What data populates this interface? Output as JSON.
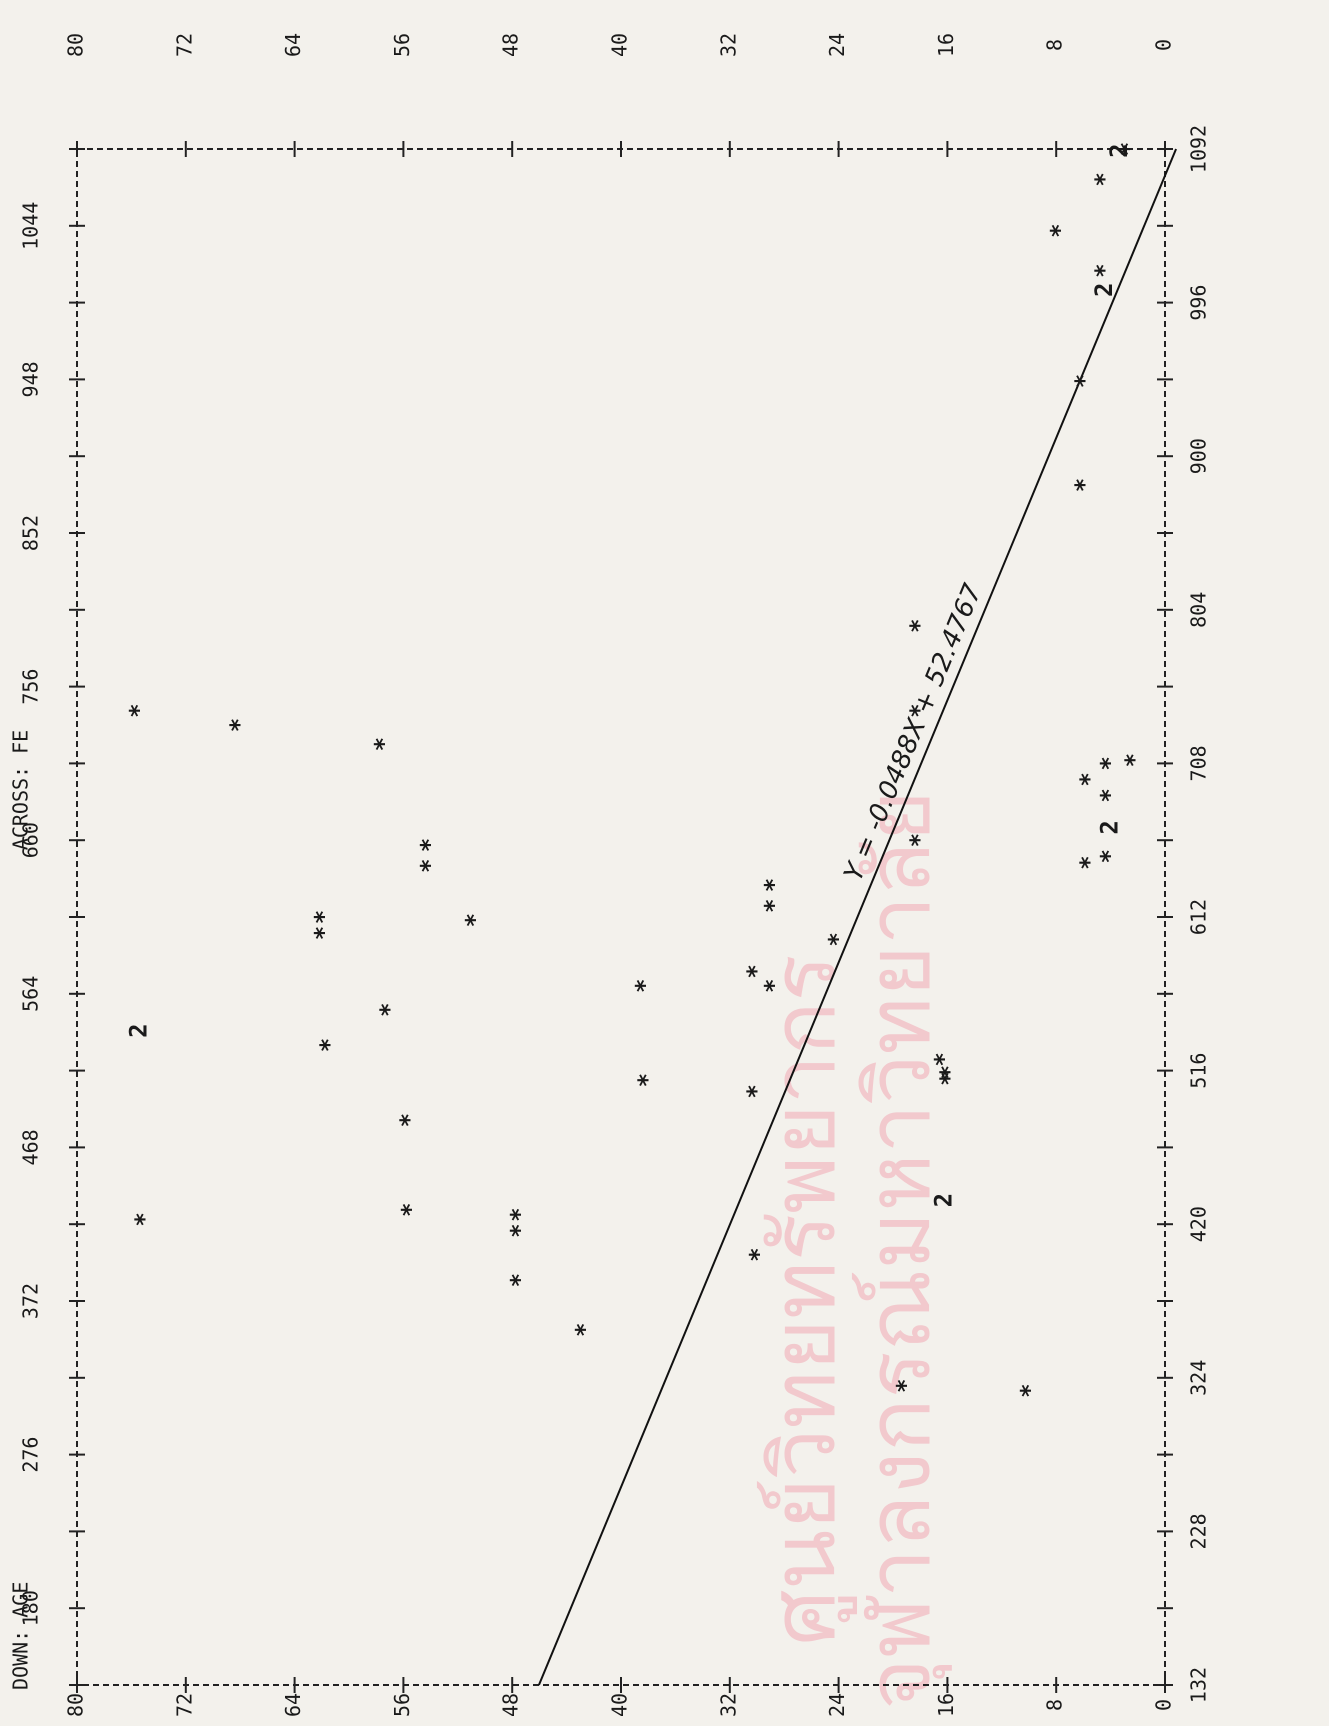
{
  "chart_data": {
    "type": "scatter",
    "x_label": "ACROSS: FE",
    "y_label": "DOWN: AGE",
    "xlim": [
      132,
      1092
    ],
    "ylim": [
      0,
      80
    ],
    "xticks": [
      132,
      180,
      228,
      276,
      324,
      372,
      420,
      468,
      516,
      564,
      612,
      660,
      708,
      756,
      804,
      852,
      900,
      948,
      996,
      1044,
      1092
    ],
    "yticks": [
      0,
      8,
      16,
      24,
      32,
      40,
      48,
      56,
      64,
      72,
      80
    ],
    "color": "#111111",
    "x": [
      741,
      541,
      423,
      732,
      532,
      612,
      602,
      720,
      657,
      644,
      554,
      485,
      429,
      610,
      426,
      416,
      385,
      354,
      569,
      510,
      503,
      578,
      569,
      619,
      632,
      401,
      598,
      741,
      794,
      660,
      523,
      515,
      511,
      435,
      319,
      316,
      708,
      688,
      668,
      650,
      698,
      646,
      710,
      882,
      947,
      1041,
      1016,
      1004,
      1073,
      1091,
      1092
    ],
    "values": [
      75.4,
      75.4,
      75,
      68,
      61.4,
      61.8,
      61.8,
      57.4,
      54,
      54,
      57,
      55.5,
      55.4,
      50.7,
      47.4,
      47.4,
      47.4,
      42.6,
      38.2,
      38,
      30,
      30,
      28.7,
      28.7,
      28.7,
      29.8,
      24,
      18,
      18,
      18,
      16.2,
      15.8,
      15.8,
      16.2,
      19,
      9.9,
      4,
      4,
      4,
      4,
      5.5,
      5.5,
      2.2,
      5.9,
      5.9,
      7.7,
      4.4,
      4.4,
      4.4,
      3.3,
      2.6
    ],
    "markers": [
      "*",
      "2",
      "*",
      "*",
      "*",
      "*",
      "*",
      "*",
      "*",
      "*",
      "*",
      "*",
      "*",
      "*",
      "*",
      "*",
      "*",
      "*",
      "*",
      "*",
      "*",
      "*",
      "*",
      "*",
      "*",
      "*",
      "*",
      "*",
      "*",
      "*",
      "*",
      "*",
      "*",
      "2",
      "*",
      "*",
      "*",
      "*",
      "2",
      "*",
      "*",
      "*",
      "*",
      "*",
      "*",
      "*",
      "*",
      "2",
      "*",
      "2",
      "*"
    ],
    "regression": {
      "label": "Y = -0.0488X + 52.4767",
      "slope": -0.0488,
      "intercept": 52.4767
    },
    "watermark": [
      "ศูนย์วิทยทรัพยากร",
      "จุฬาลงกรณ์มหาวิทยาลัย"
    ]
  }
}
